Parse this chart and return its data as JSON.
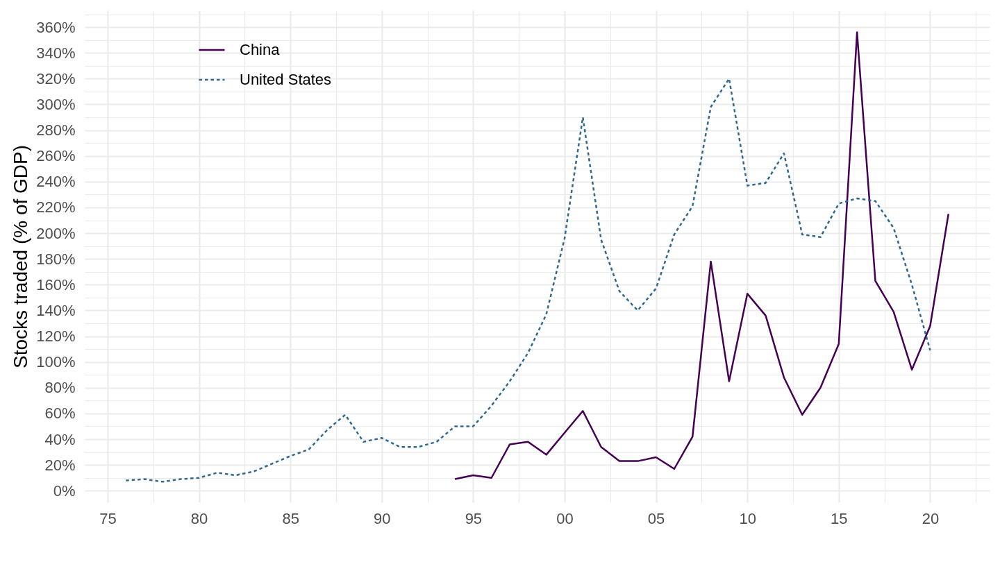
{
  "chart_data": {
    "type": "line",
    "ylabel": "Stocks traded (% of GDP)",
    "xlim": [
      1973.75,
      2023.25
    ],
    "xticks": [
      {
        "value": 1975,
        "label": "75"
      },
      {
        "value": 1977.5,
        "label": null
      },
      {
        "value": 1980,
        "label": "80"
      },
      {
        "value": 1982.5,
        "label": null
      },
      {
        "value": 1985,
        "label": "85"
      },
      {
        "value": 1987.5,
        "label": null
      },
      {
        "value": 1990,
        "label": "90"
      },
      {
        "value": 1992.5,
        "label": null
      },
      {
        "value": 1995,
        "label": "95"
      },
      {
        "value": 1997.5,
        "label": null
      },
      {
        "value": 2000,
        "label": "00"
      },
      {
        "value": 2002.5,
        "label": null
      },
      {
        "value": 2005,
        "label": "05"
      },
      {
        "value": 2007.5,
        "label": null
      },
      {
        "value": 2010,
        "label": "10"
      },
      {
        "value": 2012.5,
        "label": null
      },
      {
        "value": 2015,
        "label": "15"
      },
      {
        "value": 2017.5,
        "label": null
      },
      {
        "value": 2020,
        "label": "20"
      },
      {
        "value": 2022.5,
        "label": null
      }
    ],
    "ylim": [
      -9,
      373
    ],
    "yticks": [
      {
        "value": 0,
        "label": "0%"
      },
      {
        "value": 10,
        "label": null
      },
      {
        "value": 20,
        "label": "20%"
      },
      {
        "value": 30,
        "label": null
      },
      {
        "value": 40,
        "label": "40%"
      },
      {
        "value": 50,
        "label": null
      },
      {
        "value": 60,
        "label": "60%"
      },
      {
        "value": 70,
        "label": null
      },
      {
        "value": 80,
        "label": "80%"
      },
      {
        "value": 90,
        "label": null
      },
      {
        "value": 100,
        "label": "100%"
      },
      {
        "value": 110,
        "label": null
      },
      {
        "value": 120,
        "label": "120%"
      },
      {
        "value": 130,
        "label": null
      },
      {
        "value": 140,
        "label": "140%"
      },
      {
        "value": 150,
        "label": null
      },
      {
        "value": 160,
        "label": "160%"
      },
      {
        "value": 170,
        "label": null
      },
      {
        "value": 180,
        "label": "180%"
      },
      {
        "value": 190,
        "label": null
      },
      {
        "value": 200,
        "label": "200%"
      },
      {
        "value": 210,
        "label": null
      },
      {
        "value": 220,
        "label": "220%"
      },
      {
        "value": 230,
        "label": null
      },
      {
        "value": 240,
        "label": "240%"
      },
      {
        "value": 250,
        "label": null
      },
      {
        "value": 260,
        "label": "260%"
      },
      {
        "value": 270,
        "label": null
      },
      {
        "value": 280,
        "label": "280%"
      },
      {
        "value": 290,
        "label": null
      },
      {
        "value": 300,
        "label": "300%"
      },
      {
        "value": 310,
        "label": null
      },
      {
        "value": 320,
        "label": "320%"
      },
      {
        "value": 330,
        "label": null
      },
      {
        "value": 340,
        "label": "340%"
      },
      {
        "value": 350,
        "label": null
      },
      {
        "value": 360,
        "label": "360%"
      },
      {
        "value": 370,
        "label": null
      }
    ],
    "grid": true,
    "legend": "top left",
    "series": [
      {
        "name": "China",
        "color": "#440154",
        "line_style": "solid",
        "x": [
          1994,
          1995,
          1996,
          1997,
          1998,
          1999,
          2000,
          2001,
          2002,
          2003,
          2004,
          2005,
          2006,
          2007,
          2008,
          2009,
          2010,
          2011,
          2012,
          2013,
          2014,
          2015,
          2016,
          2017,
          2018,
          2019,
          2020,
          2021
        ],
        "values": [
          9,
          12,
          10,
          36,
          38,
          28,
          45,
          62,
          34,
          23,
          23,
          26,
          17,
          42,
          178,
          85,
          153,
          136,
          88,
          59,
          80,
          114,
          356,
          163,
          139,
          94,
          128,
          215
        ]
      },
      {
        "name": "United States",
        "color": "#31688e",
        "line_style": "dashed",
        "x": [
          1976,
          1977,
          1978,
          1979,
          1980,
          1981,
          1982,
          1983,
          1984,
          1985,
          1986,
          1987,
          1988,
          1989,
          1990,
          1991,
          1992,
          1993,
          1994,
          1995,
          1996,
          1997,
          1998,
          1999,
          2000,
          2001,
          2002,
          2003,
          2004,
          2005,
          2006,
          2007,
          2008,
          2009,
          2010,
          2011,
          2012,
          2013,
          2014,
          2015,
          2016,
          2017,
          2018,
          2019,
          2020
        ],
        "values": [
          8,
          9,
          7,
          9,
          10,
          14,
          12,
          15,
          21,
          27,
          32,
          47,
          59,
          38,
          41,
          34,
          34,
          38,
          50,
          50,
          66,
          85,
          107,
          137,
          196,
          290,
          195,
          155,
          140,
          157,
          199,
          221,
          298,
          320,
          237,
          239,
          262,
          199,
          197,
          223,
          227,
          225,
          204,
          160,
          109
        ]
      }
    ]
  }
}
